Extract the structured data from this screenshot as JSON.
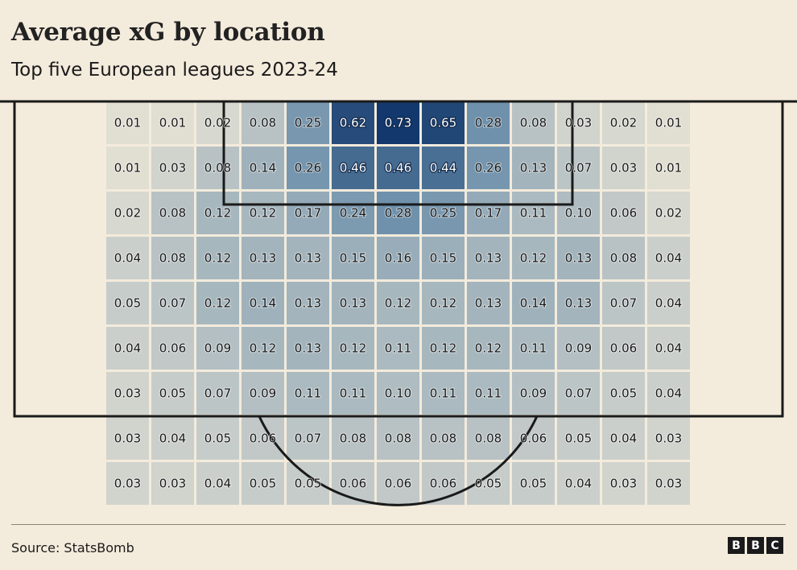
{
  "title": "Average xG by location",
  "subtitle": "Top five European leagues 2023-24",
  "source": "Source: StatsBomb",
  "logo": [
    "B",
    "B",
    "C"
  ],
  "colors": {
    "background": "#f3ebdc",
    "cell_low": "#e1ded2",
    "cell_high": "#12386d",
    "pitch_lines": "#1a1a1a"
  },
  "chart_data": {
    "type": "heatmap",
    "title": "Average xG by location",
    "subtitle": "Top five European leagues 2023-24",
    "rows": 9,
    "cols": 13,
    "values": [
      [
        0.01,
        0.01,
        0.02,
        0.08,
        0.25,
        0.62,
        0.73,
        0.65,
        0.28,
        0.08,
        0.03,
        0.02,
        0.01
      ],
      [
        0.01,
        0.03,
        0.08,
        0.14,
        0.26,
        0.46,
        0.46,
        0.44,
        0.26,
        0.13,
        0.07,
        0.03,
        0.01
      ],
      [
        0.02,
        0.08,
        0.12,
        0.12,
        0.17,
        0.24,
        0.28,
        0.25,
        0.17,
        0.11,
        0.1,
        0.06,
        0.02
      ],
      [
        0.04,
        0.08,
        0.12,
        0.13,
        0.13,
        0.15,
        0.16,
        0.15,
        0.13,
        0.12,
        0.13,
        0.08,
        0.04
      ],
      [
        0.05,
        0.07,
        0.12,
        0.14,
        0.13,
        0.13,
        0.12,
        0.12,
        0.13,
        0.14,
        0.13,
        0.07,
        0.04
      ],
      [
        0.04,
        0.06,
        0.09,
        0.12,
        0.13,
        0.12,
        0.11,
        0.12,
        0.12,
        0.11,
        0.09,
        0.06,
        0.04
      ],
      [
        0.03,
        0.05,
        0.07,
        0.09,
        0.11,
        0.11,
        0.1,
        0.11,
        0.11,
        0.09,
        0.07,
        0.05,
        0.04
      ],
      [
        0.03,
        0.04,
        0.05,
        0.06,
        0.07,
        0.08,
        0.08,
        0.08,
        0.08,
        0.06,
        0.05,
        0.04,
        0.03
      ],
      [
        0.03,
        0.03,
        0.04,
        0.05,
        0.05,
        0.06,
        0.06,
        0.06,
        0.05,
        0.05,
        0.04,
        0.03,
        0.03
      ]
    ],
    "value_range": [
      0.01,
      0.73
    ],
    "legend": "none",
    "grid": false
  }
}
